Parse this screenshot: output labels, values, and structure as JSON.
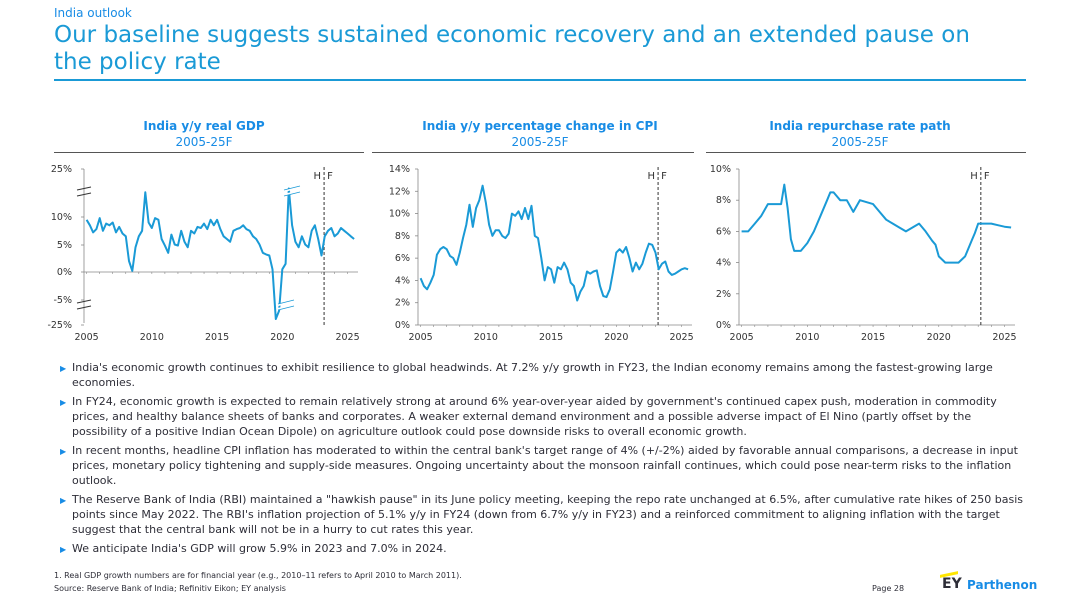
{
  "header": {
    "section": "India outlook",
    "title": "Our baseline suggests sustained economic recovery and an extended pause on the policy rate"
  },
  "charts": [
    {
      "title": "India y/y real GDP",
      "subtitle": "2005-25F"
    },
    {
      "title": "India y/y percentage change in CPI",
      "subtitle": "2005-25F"
    },
    {
      "title": "India repurchase rate path",
      "subtitle": "2005-25F"
    }
  ],
  "chart_data": [
    {
      "type": "line",
      "title": "India y/y real GDP",
      "subtitle": "2005-25F",
      "xlim": [
        2004.8,
        2025.8
      ],
      "x_ticks": [
        2005,
        2010,
        2015,
        2020,
        2025
      ],
      "y_tick_labels": [
        "25%",
        "10%",
        "5%",
        "0%",
        "-5%",
        "-25%"
      ],
      "y_axis_break": true,
      "forecast_marker": {
        "x": 2023.2,
        "label_h": "H",
        "label_f": "F"
      },
      "series": [
        {
          "color": "#1a9ad6",
          "x": [
            2005,
            2005.25,
            2005.5,
            2005.75,
            2006,
            2006.25,
            2006.5,
            2006.75,
            2007,
            2007.25,
            2007.5,
            2007.75,
            2008,
            2008.25,
            2008.5,
            2008.75,
            2009,
            2009.25,
            2009.5,
            2009.75,
            2010,
            2010.25,
            2010.5,
            2010.75,
            2011,
            2011.25,
            2011.5,
            2011.75,
            2012,
            2012.25,
            2012.5,
            2012.75,
            2013,
            2013.25,
            2013.5,
            2013.75,
            2014,
            2014.25,
            2014.5,
            2014.75,
            2015,
            2015.25,
            2015.5,
            2015.75,
            2016,
            2016.25,
            2016.5,
            2016.75,
            2017,
            2017.25,
            2017.5,
            2017.75,
            2018,
            2018.25,
            2018.5,
            2018.75,
            2019,
            2019.25,
            2019.5,
            2019.75,
            2020,
            2020.25,
            2020.5,
            2020.75,
            2021,
            2021.25,
            2021.5,
            2021.75,
            2022,
            2022.25,
            2022.5,
            2022.75,
            2023,
            2023.25,
            2023.5,
            2023.75,
            2024,
            2024.25,
            2024.5,
            2024.75,
            2025,
            2025.25,
            2025.5
          ],
          "y": [
            9.5,
            8.5,
            7.2,
            7.8,
            9.8,
            7.5,
            8.8,
            8.5,
            9.0,
            7.2,
            8.2,
            7.0,
            6.5,
            2.0,
            0.2,
            4.5,
            6.5,
            7.5,
            12.5,
            9.0,
            8.0,
            9.8,
            9.5,
            6.0,
            4.8,
            3.5,
            6.8,
            5.0,
            4.8,
            7.5,
            5.5,
            4.5,
            7.5,
            7.0,
            8.2,
            8.0,
            8.8,
            7.8,
            9.5,
            8.5,
            9.5,
            7.8,
            6.5,
            6.0,
            5.5,
            7.5,
            7.8,
            8.0,
            8.5,
            7.8,
            7.5,
            6.5,
            6.0,
            5.0,
            3.5,
            3.2,
            3.0,
            0.5,
            -24.0,
            -7.5,
            0.5,
            1.5,
            20.0,
            8.5,
            5.5,
            4.5,
            6.5,
            5.0,
            4.5,
            7.5,
            8.5,
            6.0,
            3.0,
            6.5,
            7.5,
            8.0,
            6.5,
            7.0,
            8.0,
            7.5,
            7.0,
            6.5,
            6.0
          ]
        }
      ]
    },
    {
      "type": "line",
      "title": "India y/y percentage change in CPI",
      "subtitle": "2005-25F",
      "xlim": [
        2004.8,
        2025.8
      ],
      "ylim": [
        0,
        14
      ],
      "x_ticks": [
        2005,
        2010,
        2015,
        2020,
        2025
      ],
      "y_ticks": [
        0,
        2,
        4,
        6,
        8,
        10,
        12,
        14
      ],
      "y_tick_labels": [
        "0%",
        "2%",
        "4%",
        "6%",
        "8%",
        "10%",
        "12%",
        "14%"
      ],
      "forecast_marker": {
        "x": 2023.2,
        "label_h": "H",
        "label_f": "F"
      },
      "series": [
        {
          "color": "#1a9ad6",
          "x": [
            2005,
            2005.25,
            2005.5,
            2005.75,
            2006,
            2006.25,
            2006.5,
            2006.75,
            2007,
            2007.25,
            2007.5,
            2007.75,
            2008,
            2008.25,
            2008.5,
            2008.75,
            2009,
            2009.25,
            2009.5,
            2009.75,
            2010,
            2010.25,
            2010.5,
            2010.75,
            2011,
            2011.25,
            2011.5,
            2011.75,
            2012,
            2012.25,
            2012.5,
            2012.75,
            2013,
            2013.25,
            2013.5,
            2013.75,
            2014,
            2014.25,
            2014.5,
            2014.75,
            2015,
            2015.25,
            2015.5,
            2015.75,
            2016,
            2016.25,
            2016.5,
            2016.75,
            2017,
            2017.25,
            2017.5,
            2017.75,
            2018,
            2018.25,
            2018.5,
            2018.75,
            2019,
            2019.25,
            2019.5,
            2019.75,
            2020,
            2020.25,
            2020.5,
            2020.75,
            2021,
            2021.25,
            2021.5,
            2021.75,
            2022,
            2022.25,
            2022.5,
            2022.75,
            2023,
            2023.25,
            2023.5,
            2023.75,
            2024,
            2024.25,
            2024.5,
            2024.75,
            2025,
            2025.25,
            2025.5
          ],
          "y": [
            4.2,
            3.5,
            3.2,
            3.8,
            4.5,
            6.3,
            6.8,
            7.0,
            6.8,
            6.2,
            6.0,
            5.4,
            6.5,
            7.8,
            9.0,
            10.8,
            8.8,
            10.5,
            11.2,
            12.5,
            11.0,
            9.0,
            8.0,
            8.5,
            8.5,
            8.0,
            7.8,
            8.2,
            10.0,
            9.8,
            10.2,
            9.5,
            10.5,
            9.5,
            10.7,
            8.0,
            7.8,
            6.0,
            4.0,
            5.2,
            5.0,
            3.8,
            5.2,
            5.0,
            5.6,
            5.0,
            3.8,
            3.5,
            2.2,
            3.0,
            3.5,
            4.8,
            4.6,
            4.8,
            4.9,
            3.5,
            2.6,
            2.5,
            3.2,
            4.8,
            6.5,
            6.8,
            6.5,
            7.0,
            6.0,
            4.8,
            5.6,
            5.0,
            5.5,
            6.5,
            7.3,
            7.2,
            6.5,
            5.0,
            5.5,
            5.7,
            4.8,
            4.5,
            4.6,
            4.8,
            5.0,
            5.1,
            5.0
          ]
        }
      ]
    },
    {
      "type": "line",
      "title": "India repurchase rate path",
      "subtitle": "2005-25F",
      "xlim": [
        2004.8,
        2025.8
      ],
      "ylim": [
        0,
        10
      ],
      "x_ticks": [
        2005,
        2010,
        2015,
        2020,
        2025
      ],
      "y_ticks": [
        0,
        2,
        4,
        6,
        8,
        10
      ],
      "y_tick_labels": [
        "0%",
        "2%",
        "4%",
        "6%",
        "8%",
        "10%"
      ],
      "forecast_marker": {
        "x": 2023.2,
        "label_h": "H",
        "label_f": "F"
      },
      "series": [
        {
          "color": "#1a9ad6",
          "x": [
            2005,
            2005.5,
            2006,
            2006.5,
            2007,
            2007.5,
            2008,
            2008.25,
            2008.5,
            2008.75,
            2009,
            2009.5,
            2010,
            2010.5,
            2011,
            2011.5,
            2011.75,
            2012,
            2012.5,
            2013,
            2013.5,
            2014,
            2015,
            2015.5,
            2016,
            2016.5,
            2017,
            2017.5,
            2018,
            2018.5,
            2019,
            2019.5,
            2019.75,
            2020,
            2020.5,
            2021,
            2021.5,
            2022,
            2022.5,
            2022.75,
            2023,
            2023.5,
            2024,
            2024.5,
            2025,
            2025.5
          ],
          "y": [
            6.0,
            6.0,
            6.5,
            7.0,
            7.75,
            7.75,
            7.75,
            9.0,
            7.5,
            5.5,
            4.75,
            4.75,
            5.25,
            6.0,
            7.0,
            8.0,
            8.5,
            8.5,
            8.0,
            8.0,
            7.25,
            8.0,
            7.75,
            7.25,
            6.75,
            6.5,
            6.25,
            6.0,
            6.25,
            6.5,
            6.0,
            5.4,
            5.15,
            4.4,
            4.0,
            4.0,
            4.0,
            4.4,
            5.4,
            5.9,
            6.5,
            6.5,
            6.5,
            6.4,
            6.3,
            6.25
          ]
        }
      ]
    }
  ],
  "bullets": [
    "India's economic growth continues to exhibit resilience to global headwinds. At 7.2% y/y growth in FY23, the Indian economy remains among the fastest-growing large economies.",
    "In FY24, economic growth is expected to remain relatively strong at around 6% year-over-year aided by government's continued capex push, moderation in commodity prices, and healthy balance sheets of banks and corporates. A weaker external demand environment and a possible adverse impact of El Nino (partly offset by the possibility of a positive Indian Ocean Dipole) on agriculture outlook could pose downside risks to overall economic growth.",
    "In recent months, headline CPI inflation has moderated to within the central bank's target range of 4% (+/-2%) aided by favorable annual comparisons, a decrease in input prices, monetary policy tightening and supply-side measures. Ongoing uncertainty about the monsoon rainfall continues, which could pose near-term risks to the inflation outlook.",
    "The Reserve Bank of India (RBI) maintained a \"hawkish pause\" in its June policy meeting, keeping the repo rate unchanged at 6.5%, after cumulative rate hikes of 250 basis points since May 2022. The RBI's inflation projection of 5.1% y/y in FY24 (down from 6.7% y/y in FY23) and a reinforced commitment to aligning inflation with the target suggest that the central bank will not be in a hurry to cut rates this year.",
    "We anticipate India's GDP will grow 5.9% in 2023 and 7.0% in 2024."
  ],
  "footer": {
    "footnote": "1.   Real GDP growth numbers are for financial year (e.g., 2010–11 refers to April 2010 to March 2011).",
    "source": "Source: Reserve Bank of India; Refinitiv Eikon; EY analysis",
    "page": "Page 28",
    "logo_ey": "EY",
    "logo_parthenon": "Parthenon"
  }
}
